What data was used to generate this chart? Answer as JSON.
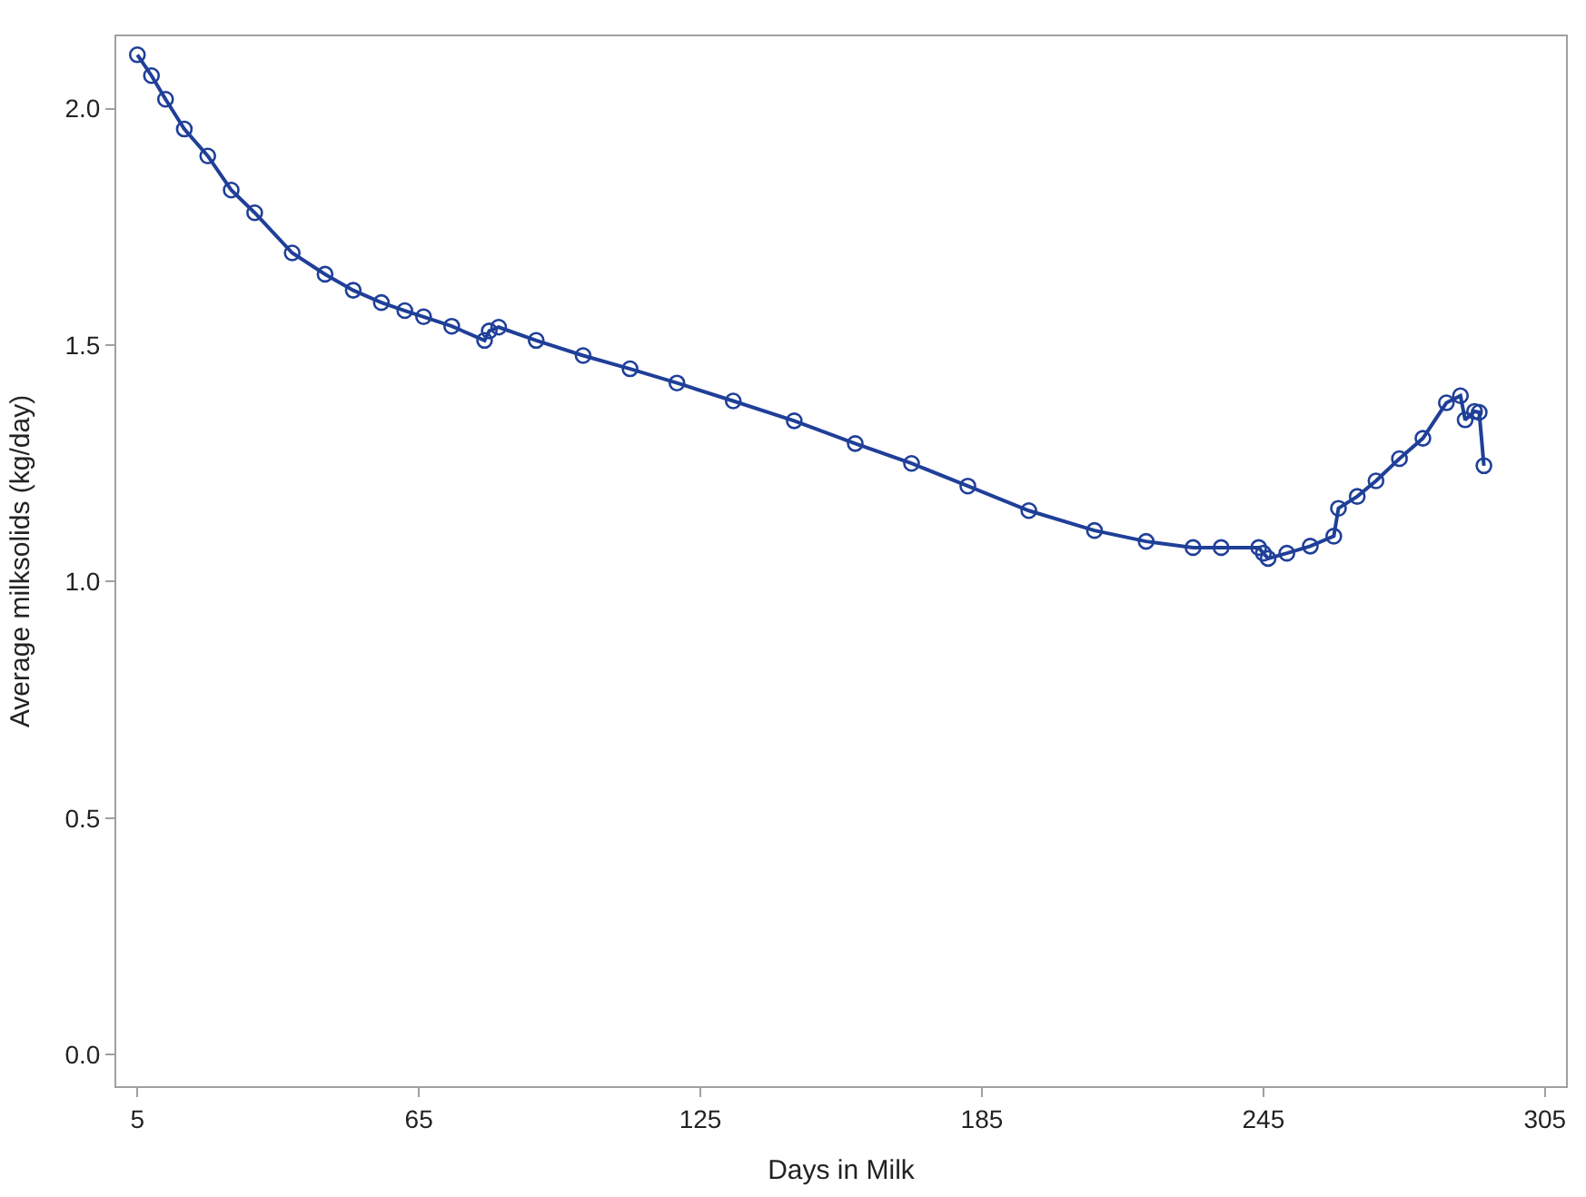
{
  "chart_data": {
    "type": "line",
    "xlabel": "Days in Milk",
    "ylabel": "Average milksolids (kg/day)",
    "xlim": [
      0.5,
      309.5
    ],
    "xticks": [
      5,
      65,
      125,
      185,
      245,
      305
    ],
    "ylim": [
      -0.067,
      2.153
    ],
    "yticks": [
      {
        "value": 0,
        "label": "0.0"
      },
      {
        "value": 0.5,
        "label": "0.5"
      },
      {
        "value": 1,
        "label": "1.0"
      },
      {
        "value": 1.5,
        "label": "1.5"
      },
      {
        "value": 2,
        "label": "2.0"
      }
    ],
    "marker": "circle",
    "line_style": "solid",
    "series": [
      {
        "color": "#1f3f98",
        "x": [
          5,
          8,
          11,
          15,
          20,
          25,
          30,
          38,
          45,
          51,
          57,
          62,
          66,
          72,
          79,
          80,
          82,
          90,
          100,
          110,
          120,
          132,
          145,
          158,
          170,
          182,
          195,
          209,
          220,
          230,
          236,
          244,
          245,
          246,
          250,
          255,
          260,
          261,
          265,
          269,
          274,
          279,
          284,
          287,
          288,
          290,
          291,
          292
        ],
        "values": [
          2.114,
          2.07,
          2.02,
          1.957,
          1.9,
          1.828,
          1.78,
          1.695,
          1.65,
          1.616,
          1.59,
          1.573,
          1.56,
          1.54,
          1.51,
          1.53,
          1.538,
          1.51,
          1.478,
          1.45,
          1.42,
          1.382,
          1.34,
          1.292,
          1.25,
          1.202,
          1.15,
          1.108,
          1.085,
          1.072,
          1.072,
          1.072,
          1.06,
          1.049,
          1.06,
          1.075,
          1.096,
          1.155,
          1.18,
          1.213,
          1.26,
          1.303,
          1.378,
          1.393,
          1.342,
          1.36,
          1.358,
          1.245
        ]
      }
    ]
  }
}
